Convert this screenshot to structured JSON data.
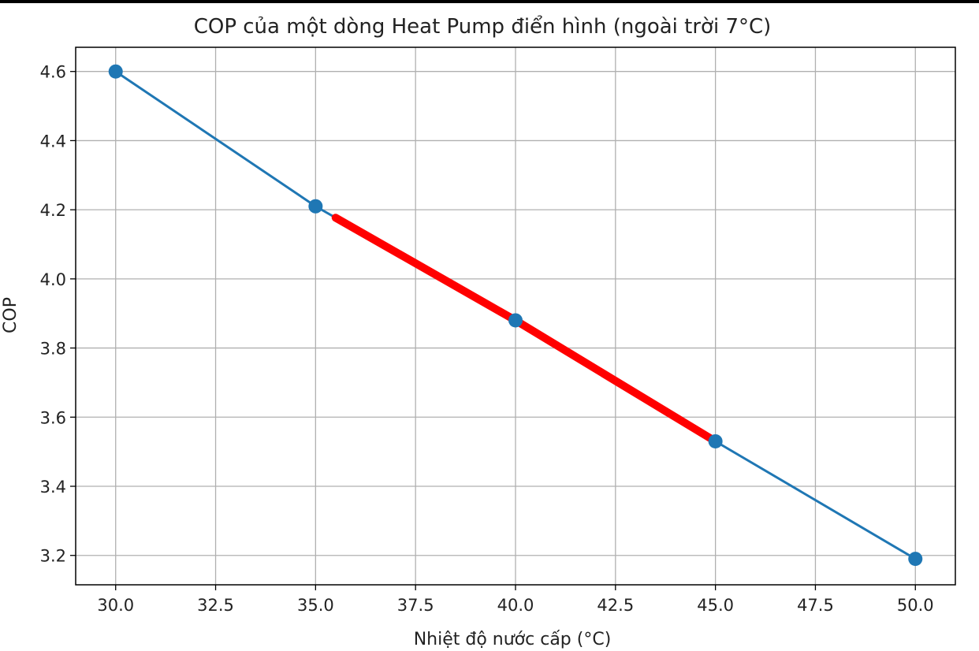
{
  "chart_data": {
    "type": "line",
    "title": "COP của một dòng Heat Pump điển hình (ngoài trời 7°C)",
    "xlabel": "Nhiệt độ nước cấp (°C)",
    "ylabel": "COP",
    "x": [
      30,
      35,
      40,
      45,
      50
    ],
    "series": [
      {
        "values": [
          4.6,
          4.21,
          3.88,
          3.53,
          3.19
        ],
        "color": "#1f77b4",
        "marker": "circle"
      }
    ],
    "highlight": {
      "x_range": [
        35.5,
        45
      ],
      "color": "#ff0000"
    },
    "xlim": [
      29,
      51
    ],
    "ylim": [
      3.115,
      4.67
    ],
    "xticks": [
      "30.0",
      "32.5",
      "35.0",
      "37.5",
      "40.0",
      "42.5",
      "45.0",
      "47.5",
      "50.0"
    ],
    "yticks": [
      "3.2",
      "3.4",
      "3.6",
      "3.8",
      "4.0",
      "4.2",
      "4.4",
      "4.6"
    ],
    "grid": true
  }
}
